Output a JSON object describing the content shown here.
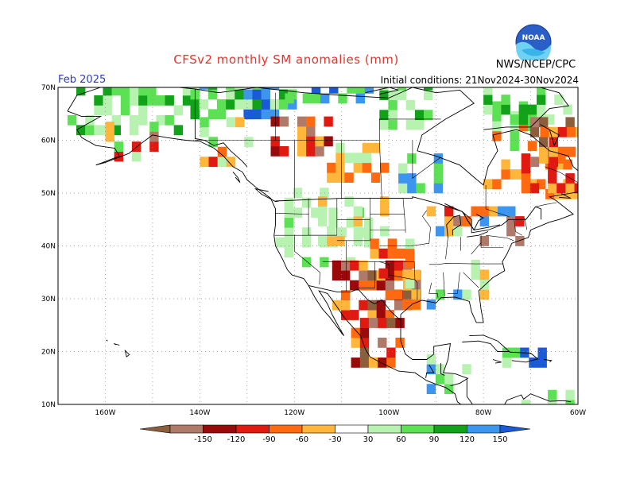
{
  "header": {
    "title": "CFSv2 monthly SM anomalies (mm)",
    "org": "NWS/NCEP/CPC",
    "valid_month": "Feb 2025",
    "initial_conditions": "Initial conditions: 21Nov2024-30Nov2024",
    "logo_text": "NOAA"
  },
  "map": {
    "lon_range": [
      -170,
      -60
    ],
    "lat_range": [
      10,
      70
    ],
    "lat_labels": [
      "70N",
      "60N",
      "50N",
      "40N",
      "30N",
      "20N",
      "10N"
    ],
    "lat_values": [
      70,
      60,
      50,
      40,
      30,
      20,
      10
    ],
    "lon_labels": [
      "160W",
      "140W",
      "120W",
      "100W",
      "80W",
      "60W"
    ],
    "lon_values": [
      -160,
      -140,
      -120,
      -100,
      -80,
      -60
    ],
    "grid": "dotted"
  },
  "colorbar": {
    "labels": [
      "-150",
      "-120",
      "-90",
      "-60",
      "-30",
      "30",
      "60",
      "90",
      "120",
      "150"
    ],
    "colors": [
      "#8b5e3c",
      "#b07a6a",
      "#9a0a0a",
      "#e01a10",
      "#ff6a10",
      "#ffb63a",
      "#ffffff",
      "#b8f2b0",
      "#5ce054",
      "#12a21a",
      "#3c96f0",
      "#1a5ad4"
    ]
  },
  "anomalies": {
    "colors": {
      "dark_brown": "#8b5e3c",
      "mauve": "#b07a6a",
      "dark_red": "#9a0a0a",
      "red": "#e01a10",
      "orange": "#ff6a10",
      "light_orange": "#ffb63a",
      "light_green": "#b8f2b0",
      "green": "#5ce054",
      "dark_green": "#12a21a",
      "light_blue": "#3c96f0",
      "blue": "#1a5ad4"
    }
  }
}
